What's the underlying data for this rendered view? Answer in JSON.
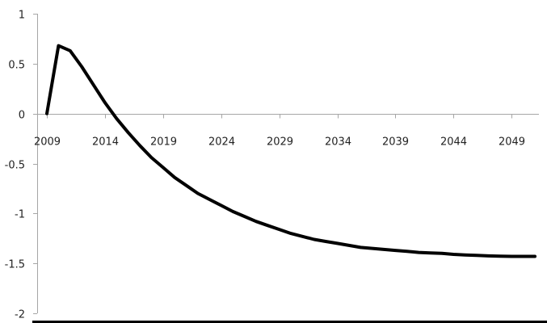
{
  "chart_data": {
    "type": "line",
    "title": "",
    "xlabel": "",
    "ylabel": "",
    "xlim": [
      2009,
      2051
    ],
    "ylim": [
      -2,
      1
    ],
    "x_ticks": [
      2009,
      2014,
      2019,
      2024,
      2029,
      2034,
      2039,
      2044,
      2049
    ],
    "y_ticks": [
      1,
      0.5,
      0,
      -0.5,
      -1,
      -1.5,
      -2
    ],
    "x_tick_labels": [
      "2009",
      "2014",
      "2019",
      "2024",
      "2029",
      "2034",
      "2039",
      "2044",
      "2049"
    ],
    "y_tick_labels": [
      "1",
      "0.5",
      "0",
      "-0.5",
      "-1",
      "-1.5",
      "-2"
    ],
    "grid": false,
    "legend": "none",
    "series": [
      {
        "color": "#000000",
        "x": [
          2009,
          2010,
          2011,
          2012,
          2013,
          2014,
          2015,
          2016,
          2017,
          2018,
          2019,
          2020,
          2021,
          2022,
          2023,
          2024,
          2025,
          2026,
          2027,
          2028,
          2029,
          2030,
          2031,
          2032,
          2033,
          2034,
          2035,
          2036,
          2037,
          2038,
          2039,
          2040,
          2041,
          2042,
          2043,
          2044,
          2045,
          2046,
          2047,
          2048,
          2049,
          2050,
          2051
        ],
        "values": [
          0,
          0.68,
          0.63,
          0.47,
          0.29,
          0.11,
          -0.05,
          -0.19,
          -0.32,
          -0.44,
          -0.54,
          -0.64,
          -0.72,
          -0.8,
          -0.86,
          -0.92,
          -0.98,
          -1.03,
          -1.08,
          -1.12,
          -1.16,
          -1.2,
          -1.23,
          -1.26,
          -1.28,
          -1.3,
          -1.32,
          -1.34,
          -1.35,
          -1.36,
          -1.37,
          -1.38,
          -1.39,
          -1.395,
          -1.4,
          -1.41,
          -1.415,
          -1.42,
          -1.425,
          -1.428,
          -1.43,
          -1.43,
          -1.43
        ]
      }
    ]
  }
}
